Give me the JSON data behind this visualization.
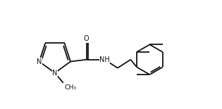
{
  "bg": "#ffffff",
  "bc": "#111111",
  "lw": 1.3,
  "fs": 7.0,
  "fig_w": 3.15,
  "fig_h": 1.55,
  "dpi": 100,
  "xlim": [
    0.2,
    10.0
  ],
  "ylim": [
    2.8,
    8.2
  ]
}
